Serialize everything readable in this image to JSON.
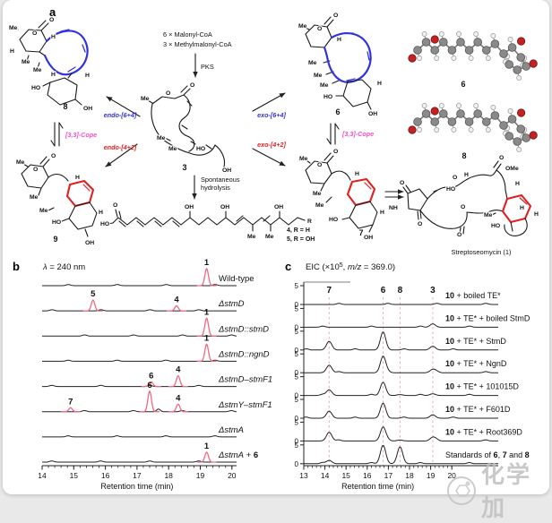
{
  "panels": {
    "a": "a",
    "b": "b",
    "c": "c"
  },
  "colors": {
    "blue": "#3333dd",
    "red": "#e02020",
    "magenta": "#f050c8",
    "pink_peak": "#ef6a84",
    "dashed_marker": "#e6aeb6",
    "trace": "#222222",
    "model_carbon": "#8a8a8a",
    "model_oxygen": "#c42222",
    "model_hydrogen": "#f0f0f0",
    "watermark": "#c0c0c0"
  },
  "panel_a": {
    "biosynthesis": {
      "inputs_line1": "6 × Malonyl-CoA",
      "inputs_line2": "3 × Methylmalonyl-CoA",
      "enzyme": "PKS"
    },
    "hydrolysis_line1": "Spontaneous",
    "hydrolysis_line2": "hydrolysis",
    "reactions": {
      "endo64": "endo-[6+4]",
      "endo42": "endo-[4+2]",
      "exo64": "exo-[6+4]",
      "exo42": "exo-[4+2]",
      "cope_left": "[3,3]-Cope",
      "cope_right": "[3,3]-Cope"
    },
    "compounds": {
      "c8": {
        "number": "8",
        "atoms": [
          "Me",
          "O",
          "O",
          "H",
          "H",
          "Me",
          "Me",
          "H",
          "H",
          "HO",
          "OH"
        ]
      },
      "c6": {
        "number": "6",
        "atoms": [
          "Me",
          "O",
          "O",
          "H",
          "Me",
          "Me",
          "Me",
          "HO",
          "OH",
          "H"
        ]
      },
      "c9": {
        "number": "9",
        "atoms": [
          "Me",
          "O",
          "O",
          "H",
          "Me",
          "Me",
          "HO",
          "OH",
          "H"
        ]
      },
      "c7": {
        "number": "7",
        "atoms": [
          "Me",
          "O",
          "O",
          "H",
          "Me",
          "Me",
          "HO",
          "OH",
          "H"
        ]
      },
      "c3": {
        "number": "3",
        "atoms": [
          "Me",
          "O",
          "O",
          "Me",
          "Me",
          "HO",
          "OH"
        ]
      },
      "c45": {
        "variant1": "4, R = H",
        "variant2": "5, R = OH",
        "atoms": [
          "HO",
          "O",
          "OH",
          "OH",
          "OH",
          "Me",
          "Me",
          "R"
        ]
      },
      "c1": {
        "name": "Streptoseomycin (1)",
        "atoms": [
          "O",
          "NH",
          "O",
          "O",
          "HO",
          "H",
          "O",
          "OMe",
          "O",
          "O",
          "Me",
          "HO",
          "H",
          "H",
          "H"
        ]
      }
    },
    "models": {
      "m6": "6",
      "m8": "8"
    }
  },
  "watermark": {
    "text": "化学加"
  },
  "chart_data": [
    {
      "id": "b",
      "type": "line",
      "title": "λ = 240 nm",
      "title_segments": [
        {
          "t": "λ",
          "i": 1
        },
        {
          "t": " = 240 nm"
        }
      ],
      "xlabel": "Retention time (min)",
      "xlim": [
        14,
        20.2
      ],
      "xticks": [
        14,
        15,
        16,
        17,
        18,
        19,
        20
      ],
      "traces": [
        {
          "label": "Wild-type",
          "segments": [
            {
              "t": "Wild-type"
            }
          ],
          "peaks": [
            {
              "label": "1",
              "rt": 19.2,
              "h": 0.95
            }
          ]
        },
        {
          "label": "ΔstmD",
          "segments": [
            {
              "t": "ΔstmD",
              "i": 1
            }
          ],
          "peaks": [
            {
              "label": "5",
              "rt": 15.61,
              "h": 0.6
            },
            {
              "label": "4",
              "rt": 18.25,
              "h": 0.28
            }
          ]
        },
        {
          "label": "ΔstmD::stmD",
          "segments": [
            {
              "t": "ΔstmD::stmD",
              "i": 1
            }
          ],
          "peaks": [
            {
              "label": "1",
              "rt": 19.2,
              "h": 1.0
            }
          ]
        },
        {
          "label": "ΔstmD::ngnD",
          "segments": [
            {
              "t": "ΔstmD::ngnD",
              "i": 1
            }
          ],
          "peaks": [
            {
              "label": "1",
              "rt": 19.2,
              "h": 0.95
            }
          ]
        },
        {
          "label": "ΔstmD–stmF1",
          "segments": [
            {
              "t": "ΔstmD–stmF1",
              "i": 1
            }
          ],
          "peaks": [
            {
              "label": "6",
              "rt": 17.45,
              "h": 0.26
            },
            {
              "label": "4",
              "rt": 18.3,
              "h": 0.6
            }
          ]
        },
        {
          "label": "ΔstmY–stmF1",
          "segments": [
            {
              "t": "ΔstmY–stmF1",
              "i": 1
            }
          ],
          "peaks": [
            {
              "label": "7",
              "rt": 14.9,
              "h": 0.22
            },
            {
              "label": "6",
              "rt": 17.4,
              "h": 1.15
            },
            {
              "label": "",
              "rt": 17.68,
              "h": 0.15,
              "dark": 1
            },
            {
              "label": "4",
              "rt": 18.3,
              "h": 0.42
            }
          ]
        },
        {
          "label": "ΔstmA",
          "segments": [
            {
              "t": "ΔstmA",
              "i": 1
            }
          ],
          "peaks": []
        },
        {
          "label": "ΔstmA + 6",
          "segments": [
            {
              "t": "ΔstmA",
              "i": 1
            },
            {
              "t": " + "
            },
            {
              "t": "6",
              "b": 1
            }
          ],
          "peaks": [
            {
              "label": "1",
              "rt": 19.2,
              "h": 0.55
            }
          ]
        }
      ]
    },
    {
      "id": "c",
      "type": "line",
      "title": "EIC (×10⁵, m/z = 369.0)",
      "title_segments": [
        {
          "t": "EIC (×10"
        },
        {
          "t": "5",
          "sup": 1
        },
        {
          "t": ", "
        },
        {
          "t": "m/z",
          "i": 1
        },
        {
          "t": " = 369.0)"
        }
      ],
      "xlabel": "Retention time (min)",
      "xlim": [
        13,
        20.6
      ],
      "xticks": [
        13,
        14,
        15,
        16,
        17,
        18,
        19,
        20
      ],
      "ylim": [
        0,
        5
      ],
      "ytick_low": "0",
      "ytick_high": "5",
      "marker_lines": [
        {
          "label": "7",
          "rt": 14.2
        },
        {
          "label": "6",
          "rt": 16.75
        },
        {
          "label": "8",
          "rt": 17.55
        },
        {
          "label": "3",
          "rt": 19.1
        }
      ],
      "traces": [
        {
          "label": "10 + boiled TE*",
          "segments": [
            {
              "t": "10",
              "b": 1
            },
            {
              "t": " + boiled TE*"
            }
          ],
          "peaks": []
        },
        {
          "label": "10 + TE* + boiled StmD",
          "segments": [
            {
              "t": "10",
              "b": 1
            },
            {
              "t": " + TE* + boiled StmD"
            }
          ],
          "peaks": [
            {
              "rt": 19.1,
              "h": 0.9
            }
          ]
        },
        {
          "label": "10 + TE* + StmD",
          "segments": [
            {
              "t": "10",
              "b": 1
            },
            {
              "t": " + TE* + StmD"
            }
          ],
          "peaks": [
            {
              "rt": 14.2,
              "h": 2.3
            },
            {
              "rt": 16.75,
              "h": 4.8
            },
            {
              "rt": 19.1,
              "h": 1.0
            }
          ]
        },
        {
          "label": "10 + TE* + NgnD",
          "segments": [
            {
              "t": "10",
              "b": 1
            },
            {
              "t": " + TE* + NgnD"
            }
          ],
          "peaks": [
            {
              "rt": 14.2,
              "h": 2.0
            },
            {
              "rt": 16.75,
              "h": 4.4
            },
            {
              "rt": 19.1,
              "h": 0.9
            }
          ]
        },
        {
          "label": "10 + TE* + 101015D",
          "segments": [
            {
              "t": "10",
              "b": 1
            },
            {
              "t": " + TE* + 101015D"
            }
          ],
          "peaks": [
            {
              "rt": 14.2,
              "h": 1.5
            },
            {
              "rt": 16.75,
              "h": 3.5
            },
            {
              "rt": 17.55,
              "h": 0.25
            },
            {
              "rt": 19.1,
              "h": 0.45
            }
          ]
        },
        {
          "label": "10 + TE* + F601D",
          "segments": [
            {
              "t": "10",
              "b": 1
            },
            {
              "t": " + TE* + F601D"
            }
          ],
          "peaks": [
            {
              "rt": 14.2,
              "h": 1.9
            },
            {
              "rt": 16.75,
              "h": 4.0
            },
            {
              "rt": 19.1,
              "h": 0.9
            }
          ]
        },
        {
          "label": "10 + TE* + Root369D",
          "segments": [
            {
              "t": "10",
              "b": 1
            },
            {
              "t": " + TE* + Root369D"
            }
          ],
          "peaks": [
            {
              "rt": 14.2,
              "h": 2.3
            },
            {
              "rt": 16.75,
              "h": 3.7
            },
            {
              "rt": 17.55,
              "h": 0.25
            },
            {
              "rt": 19.1,
              "h": 1.0
            }
          ]
        },
        {
          "label": "Standards of 6, 7 and 8",
          "segments": [
            {
              "t": "Standards of "
            },
            {
              "t": "6",
              "b": 1
            },
            {
              "t": ", "
            },
            {
              "t": "7",
              "b": 1
            },
            {
              "t": " and "
            },
            {
              "t": "8",
              "b": 1
            }
          ],
          "peaks": [
            {
              "rt": 14.2,
              "h": 0.9
            },
            {
              "rt": 16.75,
              "h": 4.9
            },
            {
              "rt": 17.55,
              "h": 4.5
            }
          ]
        }
      ]
    }
  ]
}
